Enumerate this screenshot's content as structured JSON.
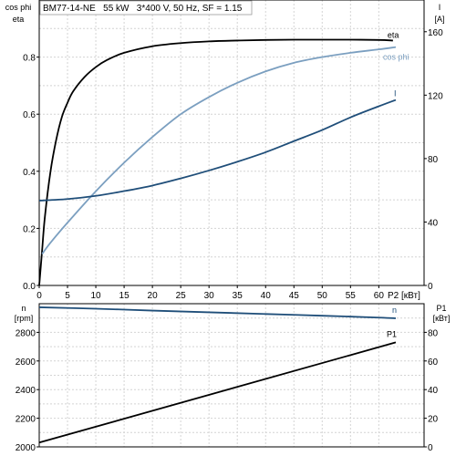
{
  "chart_data": [
    {
      "type": "line",
      "title": "BM77-14-NE   55 kW   3*400 V, 50 Hz, SF = 1.15",
      "xlabel": "P2 [кВт]",
      "xlim": [
        0,
        68
      ],
      "xticks": [
        "0",
        "5",
        "10",
        "15",
        "20",
        "25",
        "30",
        "35",
        "40",
        "45",
        "50",
        "55",
        "60"
      ],
      "left_axis": {
        "label_lines": [
          "cos phi",
          "eta"
        ],
        "ylim": [
          0,
          1.0
        ],
        "ticks": [
          "0.0",
          "0.2",
          "0.4",
          "0.6",
          "0.8"
        ],
        "tick_values": [
          0,
          0.2,
          0.4,
          0.6,
          0.8
        ]
      },
      "right_axis": {
        "label_lines": [
          "I",
          "[A]"
        ],
        "ylim": [
          0,
          180
        ],
        "ticks": [
          "0",
          "40",
          "80",
          "120",
          "160"
        ],
        "tick_values": [
          0,
          40,
          80,
          120,
          160
        ]
      },
      "grid": true,
      "series": [
        {
          "name": "eta",
          "axis": "left",
          "color": "#000000",
          "x": [
            0,
            0.5,
            1,
            2,
            3,
            4,
            5,
            6,
            8,
            10,
            12,
            15,
            20,
            25,
            30,
            35,
            40,
            45,
            50,
            55,
            60,
            62.5
          ],
          "y": [
            0,
            0.12,
            0.24,
            0.4,
            0.51,
            0.59,
            0.64,
            0.68,
            0.73,
            0.765,
            0.79,
            0.815,
            0.838,
            0.849,
            0.855,
            0.858,
            0.86,
            0.861,
            0.861,
            0.861,
            0.86,
            0.858
          ]
        },
        {
          "name": "cos phi",
          "axis": "left",
          "color": "#7b9fc0",
          "x": [
            0.5,
            2,
            5,
            10,
            15,
            20,
            25,
            30,
            35,
            40,
            45,
            50,
            55,
            60,
            63
          ],
          "y": [
            0.11,
            0.15,
            0.22,
            0.33,
            0.43,
            0.52,
            0.6,
            0.66,
            0.71,
            0.75,
            0.78,
            0.8,
            0.815,
            0.827,
            0.835
          ]
        },
        {
          "name": "I",
          "axis": "right",
          "color": "#1f4e79",
          "x": [
            0,
            5,
            10,
            15,
            20,
            25,
            30,
            35,
            40,
            45,
            50,
            55,
            60,
            63
          ],
          "y": [
            53.5,
            54.5,
            56.5,
            59.5,
            63,
            67.5,
            72.5,
            78,
            84,
            91,
            98,
            106,
            113,
            117
          ]
        }
      ]
    },
    {
      "type": "line",
      "xlim": [
        0,
        68
      ],
      "xticks": [
        "0",
        "5",
        "10",
        "15",
        "20",
        "25",
        "30",
        "35",
        "40",
        "45",
        "50",
        "55",
        "60"
      ],
      "left_axis": {
        "label_lines": [
          "n",
          "[rpm]"
        ],
        "ylim": [
          2000,
          3000
        ],
        "ticks": [
          "2000",
          "2200",
          "2400",
          "2600",
          "2800"
        ],
        "tick_values": [
          2000,
          2200,
          2400,
          2600,
          2800
        ]
      },
      "right_axis": {
        "label_lines": [
          "P1",
          "[кВт]"
        ],
        "ylim": [
          0,
          100
        ],
        "ticks": [
          "0",
          "20",
          "40",
          "60",
          "80"
        ],
        "tick_values": [
          0,
          20,
          40,
          60,
          80
        ]
      },
      "grid": true,
      "series": [
        {
          "name": "n",
          "axis": "left",
          "color": "#1f4e79",
          "x": [
            0,
            10,
            20,
            30,
            40,
            50,
            60,
            63
          ],
          "y": [
            2975,
            2965,
            2952,
            2940,
            2928,
            2916,
            2903,
            2898
          ]
        },
        {
          "name": "P1",
          "axis": "right",
          "color": "#000000",
          "x": [
            0,
            63
          ],
          "y": [
            3,
            73
          ]
        }
      ]
    }
  ]
}
